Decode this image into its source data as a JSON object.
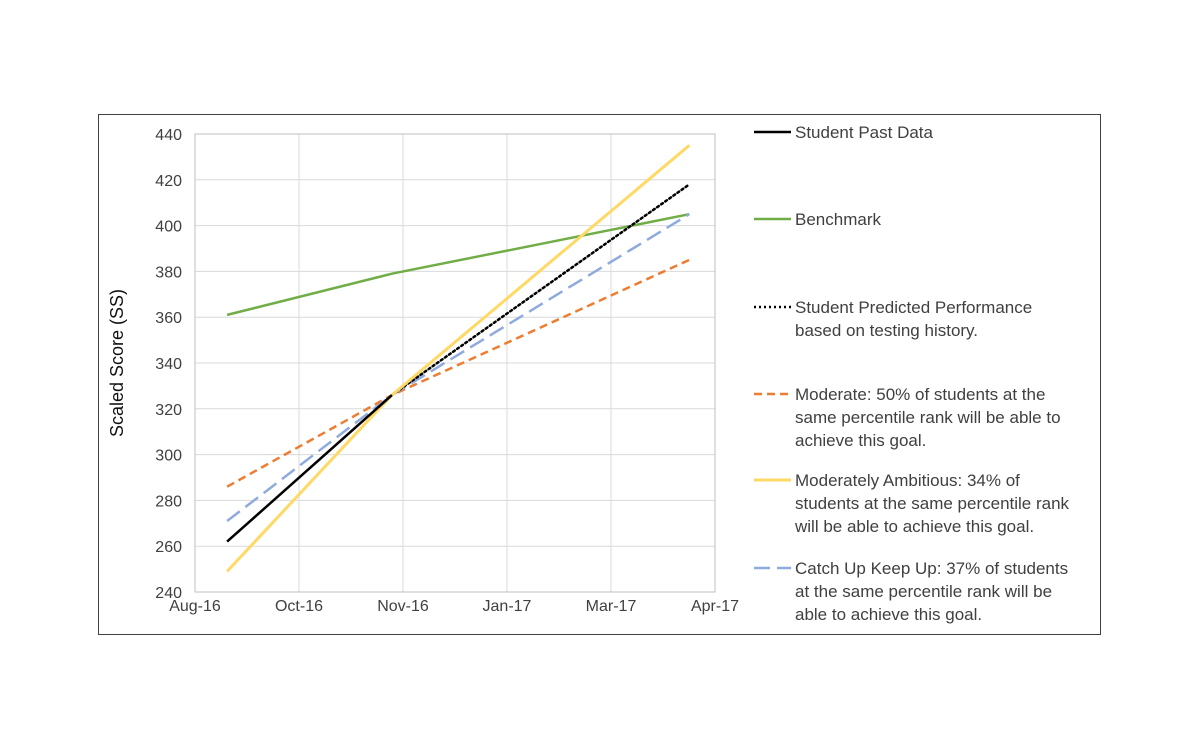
{
  "chart_data": {
    "type": "line",
    "title": "",
    "xlabel": "",
    "ylabel": "Scaled Score (SS)",
    "ylim": [
      240,
      440
    ],
    "yticks": [
      "240",
      "260",
      "280",
      "300",
      "320",
      "340",
      "360",
      "380",
      "400",
      "420",
      "440"
    ],
    "xticks": [
      "Aug-16",
      "Oct-16",
      "Nov-16",
      "Jan-17",
      "Mar-17",
      "Apr-17"
    ],
    "xlim": [
      "2016-08-01",
      "2017-04-01"
    ],
    "grid": true,
    "legend_position": "right",
    "series": [
      {
        "name": "Student Past Data",
        "color": "#000000",
        "style": "solid",
        "points": [
          {
            "x": "2016-08-16",
            "y": 262
          },
          {
            "x": "2016-11-01",
            "y": 326
          }
        ]
      },
      {
        "name": "Benchmark",
        "color": "#70ad47",
        "style": "solid",
        "points": [
          {
            "x": "2016-08-16",
            "y": 361
          },
          {
            "x": "2016-11-01",
            "y": 379
          },
          {
            "x": "2017-03-20",
            "y": 405
          }
        ]
      },
      {
        "name": "Student Predicted Performance based on testing history.",
        "color": "#000000",
        "style": "dotted",
        "points": [
          {
            "x": "2016-11-01",
            "y": 326
          },
          {
            "x": "2017-03-20",
            "y": 418
          }
        ]
      },
      {
        "name": "Moderate: 50% of students at the same percentile rank will be able to achieve this goal.",
        "color": "#ed7d31",
        "style": "dashed",
        "points": [
          {
            "x": "2016-08-16",
            "y": 286
          },
          {
            "x": "2016-11-01",
            "y": 326
          },
          {
            "x": "2017-03-20",
            "y": 385
          }
        ]
      },
      {
        "name": "Moderately Ambitious: 34% of students at the same percentile rank will be able to achieve this goal.",
        "color": "#ffd966",
        "style": "solid",
        "points": [
          {
            "x": "2016-08-16",
            "y": 249
          },
          {
            "x": "2016-11-01",
            "y": 326
          },
          {
            "x": "2017-03-20",
            "y": 435
          }
        ]
      },
      {
        "name": "Catch Up Keep Up: 37% of students at the same percentile rank will be able to achieve this goal.",
        "color": "#8faadc",
        "style": "longdash",
        "points": [
          {
            "x": "2016-08-16",
            "y": 271
          },
          {
            "x": "2016-11-01",
            "y": 326
          },
          {
            "x": "2017-03-20",
            "y": 405
          }
        ]
      }
    ],
    "legend": [
      {
        "lines": [
          "Student Past Data"
        ]
      },
      {
        "lines": [
          "Benchmark"
        ]
      },
      {
        "lines": [
          "Student Predicted Performance",
          "based on testing history."
        ]
      },
      {
        "lines": [
          "Moderate: 50% of students at the",
          "same percentile rank will be able to",
          "achieve this goal."
        ]
      },
      {
        "lines": [
          "Moderately Ambitious: 34% of",
          "students at the same percentile rank",
          "will be able to achieve this goal."
        ]
      },
      {
        "lines": [
          "Catch Up Keep Up: 37% of students",
          "at the same percentile rank will be",
          "able to achieve this goal."
        ]
      }
    ]
  }
}
